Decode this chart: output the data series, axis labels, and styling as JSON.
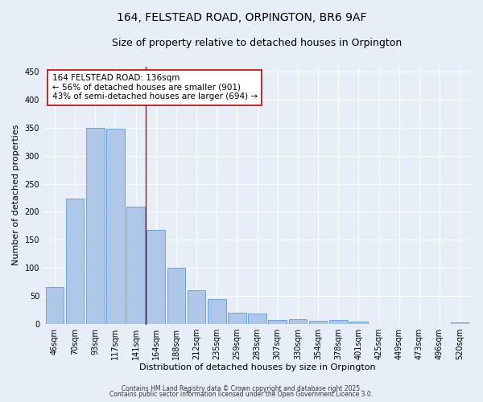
{
  "title": "164, FELSTEAD ROAD, ORPINGTON, BR6 9AF",
  "subtitle": "Size of property relative to detached houses in Orpington",
  "xlabel": "Distribution of detached houses by size in Orpington",
  "ylabel": "Number of detached properties",
  "categories": [
    "46sqm",
    "70sqm",
    "93sqm",
    "117sqm",
    "141sqm",
    "164sqm",
    "188sqm",
    "212sqm",
    "235sqm",
    "259sqm",
    "283sqm",
    "307sqm",
    "330sqm",
    "354sqm",
    "378sqm",
    "401sqm",
    "425sqm",
    "449sqm",
    "473sqm",
    "496sqm",
    "520sqm"
  ],
  "values": [
    65,
    223,
    350,
    348,
    210,
    168,
    100,
    60,
    44,
    20,
    18,
    7,
    8,
    6,
    7,
    4,
    0,
    0,
    0,
    0,
    3
  ],
  "bar_color": "#aec6e8",
  "bar_edge_color": "#5b9bd5",
  "background_color": "#e8eef8",
  "grid_color": "#ffffff",
  "vline_color": "#cc0000",
  "annotation_text": "164 FELSTEAD ROAD: 136sqm\n← 56% of detached houses are smaller (901)\n43% of semi-detached houses are larger (694) →",
  "annotation_box_color": "#ffffff",
  "annotation_box_edge": "#cc0000",
  "footer1": "Contains HM Land Registry data © Crown copyright and database right 2025.",
  "footer2": "Contains public sector information licensed under the Open Government Licence 3.0.",
  "ylim": [
    0,
    460
  ],
  "yticks": [
    0,
    50,
    100,
    150,
    200,
    250,
    300,
    350,
    400,
    450
  ],
  "title_fontsize": 10,
  "subtitle_fontsize": 9,
  "axis_label_fontsize": 8,
  "tick_fontsize": 7,
  "annotation_fontsize": 7.5,
  "footer_fontsize": 5.5,
  "vline_bar_index": 4
}
